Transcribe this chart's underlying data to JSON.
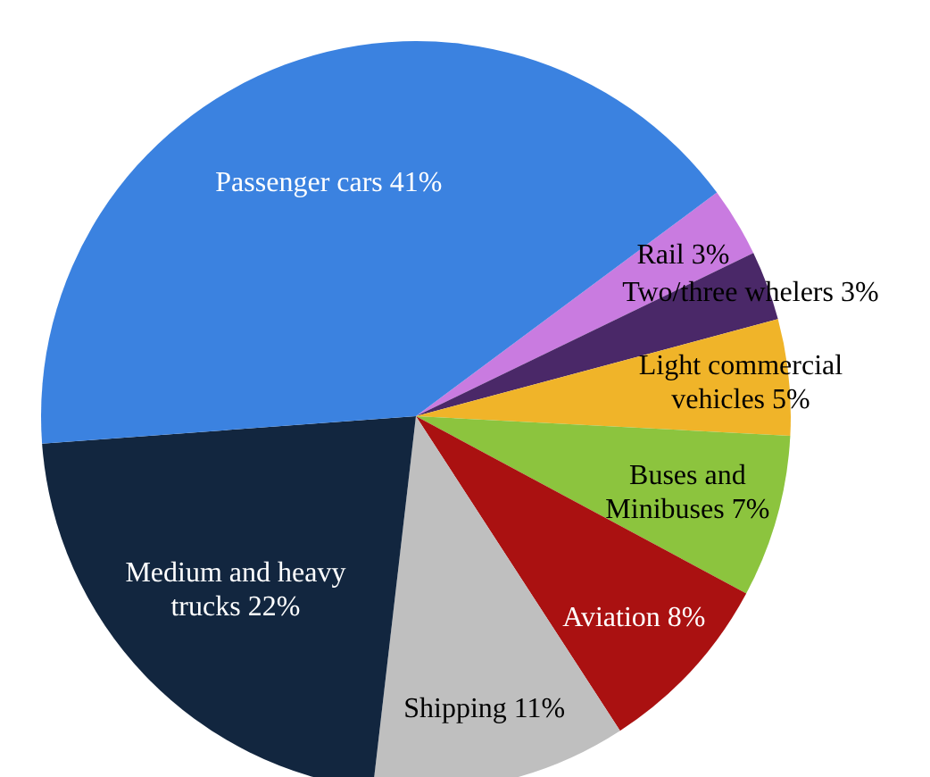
{
  "chart_data": {
    "type": "pie",
    "categories": [
      "Rail",
      "Two/three whelers",
      "Light commercial vehicles",
      "Buses and Minibuses",
      "Aviation",
      "Shipping",
      "Medium and heavy trucks",
      "Passenger cars"
    ],
    "values": [
      3,
      3,
      5,
      7,
      8,
      11,
      22,
      41
    ],
    "value_labels": [
      "3%",
      "3%",
      "5%",
      "7%",
      "8%",
      "11%",
      "22%",
      "41%"
    ],
    "colors": [
      "#c97be0",
      "#4a2868",
      "#f0b429",
      "#8cc43e",
      "#aa1111",
      "#bfbfbf",
      "#12263f",
      "#3b82e0"
    ]
  }
}
